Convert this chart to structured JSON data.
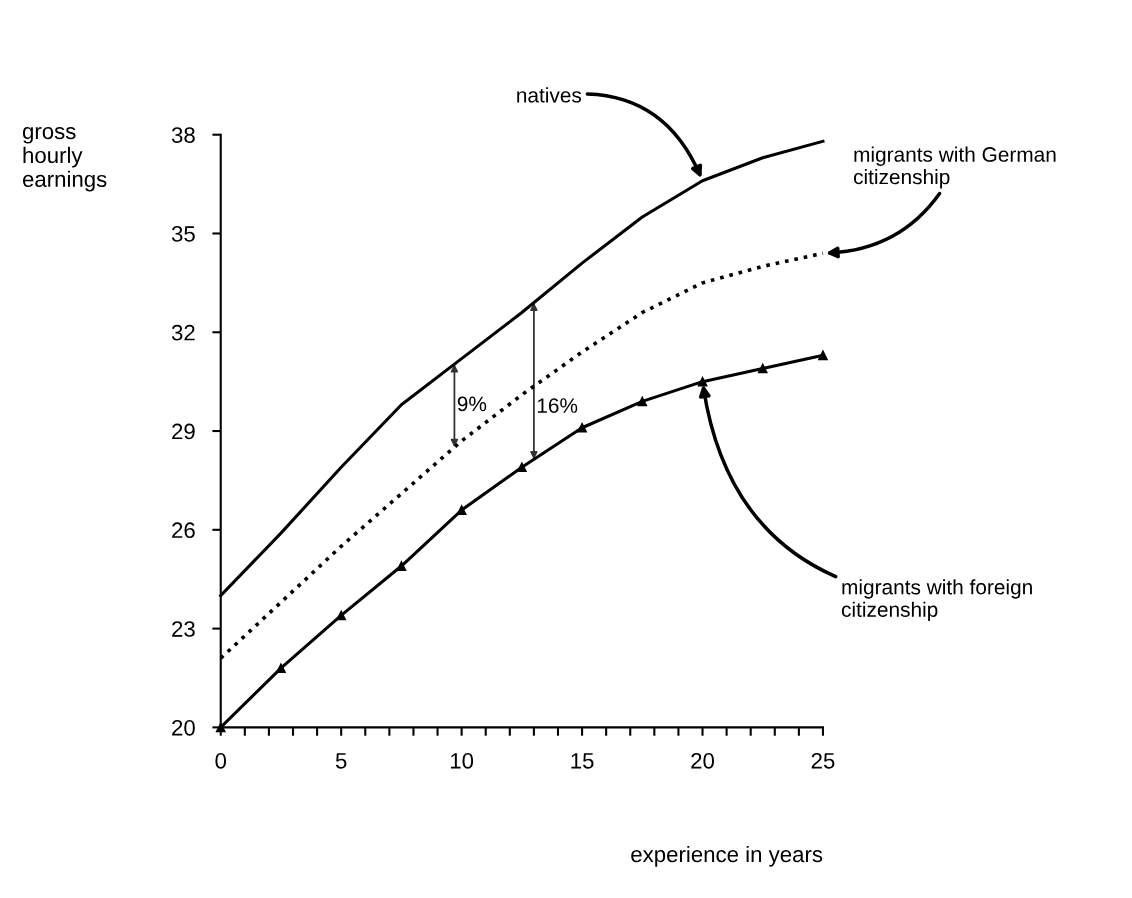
{
  "chart_data": {
    "type": "line",
    "xlabel": "experience in years",
    "ylabel": "gross\nhourly\nearnings",
    "x": [
      0,
      2.5,
      5,
      7.5,
      10,
      12.5,
      15,
      17.5,
      20,
      22.5,
      25
    ],
    "series": [
      {
        "name": "natives",
        "color": "#000000",
        "line_style": "solid",
        "marker": "none",
        "values": [
          24.0,
          25.9,
          27.9,
          29.8,
          31.2,
          32.6,
          34.1,
          35.5,
          36.6,
          37.3,
          37.8
        ]
      },
      {
        "name": "migrants with German citizenship",
        "color": "#000000",
        "line_style": "dotted",
        "marker": "none",
        "values": [
          22.1,
          23.8,
          25.5,
          27.1,
          28.7,
          30.1,
          31.4,
          32.6,
          33.5,
          34.0,
          34.4
        ]
      },
      {
        "name": "migrants with foreign citizenship",
        "color": "#000000",
        "line_style": "solid",
        "marker": "triangle",
        "values": [
          20.0,
          21.8,
          23.4,
          24.9,
          26.6,
          27.9,
          29.1,
          29.9,
          30.5,
          30.9,
          31.3
        ]
      }
    ],
    "annotations": [
      "9%",
      "16%"
    ],
    "xlim": [
      0,
      25
    ],
    "xticks": [
      0,
      {
        "value": 1,
        "label": null
      },
      {
        "value": 2,
        "label": null
      },
      {
        "value": 3,
        "label": null
      },
      {
        "value": 4,
        "label": null
      },
      5,
      {
        "value": 6,
        "label": null
      },
      {
        "value": 7,
        "label": null
      },
      {
        "value": 8,
        "label": null
      },
      {
        "value": 9,
        "label": null
      },
      10,
      {
        "value": 11,
        "label": null
      },
      {
        "value": 12,
        "label": null
      },
      {
        "value": 13,
        "label": null
      },
      {
        "value": 14,
        "label": null
      },
      15,
      {
        "value": 16,
        "label": null
      },
      {
        "value": 17,
        "label": null
      },
      {
        "value": 18,
        "label": null
      },
      {
        "value": 19,
        "label": null
      },
      20,
      {
        "value": 21,
        "label": null
      },
      {
        "value": 22,
        "label": null
      },
      {
        "value": 23,
        "label": null
      },
      {
        "value": 24,
        "label": null
      },
      25
    ],
    "ylim": [
      20,
      38
    ],
    "yticks": [
      20,
      23,
      26,
      29,
      32,
      35,
      38
    ],
    "grid": false,
    "legend": false
  }
}
